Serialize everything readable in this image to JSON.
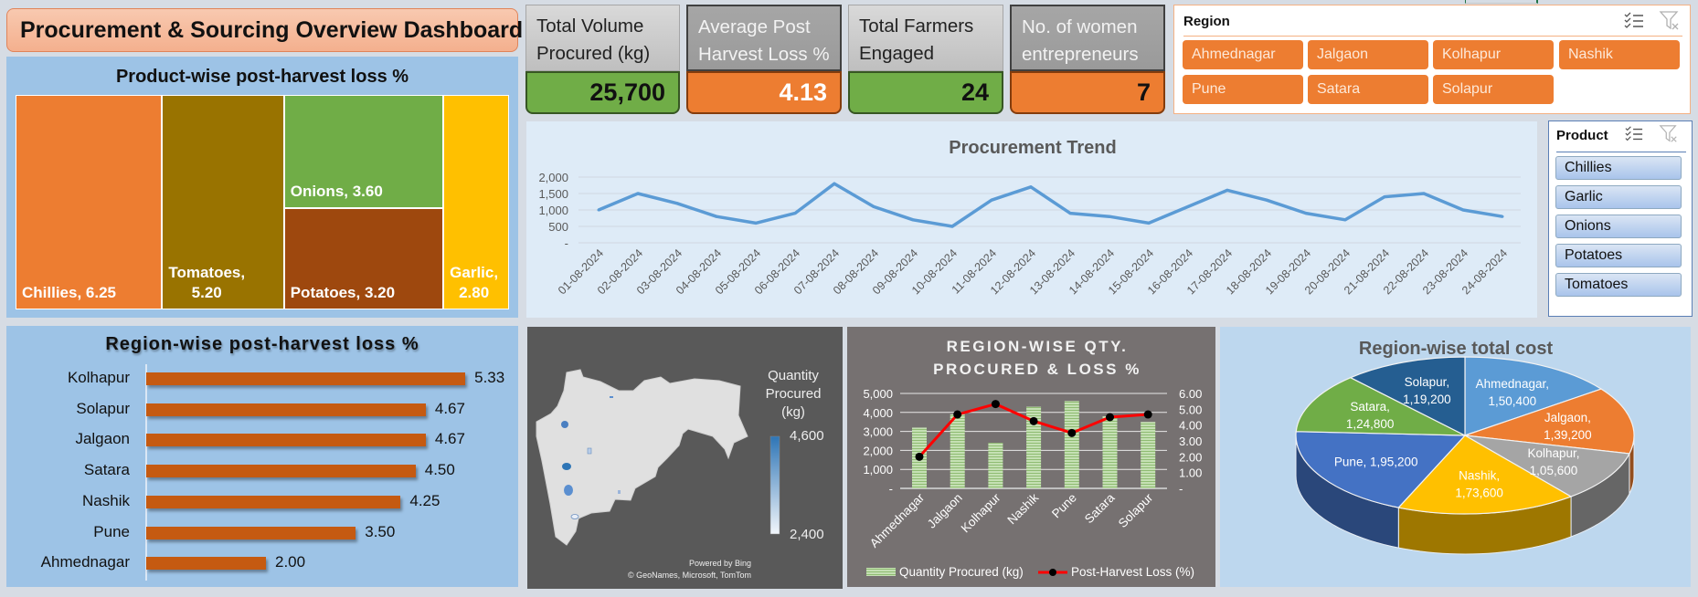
{
  "header": {
    "title": "Procurement & Sourcing Overview Dashboard"
  },
  "kpis": [
    {
      "label_line1": "Total Volume",
      "label_line2": "Procured (kg)",
      "value": "25,700",
      "color": "#70ad47"
    },
    {
      "label_line1": "Average Post",
      "label_line2": "Harvest Loss %",
      "value": "4.13",
      "color": "#ed7d31"
    },
    {
      "label_line1": "Total Farmers",
      "label_line2": "Engaged",
      "value": "24",
      "color": "#70ad47"
    },
    {
      "label_line1": "No. of women",
      "label_line2": "entrepreneurs",
      "value": "7",
      "color": "#ed7d31"
    }
  ],
  "region_slicer": {
    "title": "Region",
    "items": [
      "Ahmednagar",
      "Jalgaon",
      "Kolhapur",
      "Nashik",
      "Pune",
      "Satara",
      "Solapur"
    ]
  },
  "product_slicer": {
    "title": "Product",
    "items": [
      "Chillies",
      "Garlic",
      "Onions",
      "Potatoes",
      "Tomatoes"
    ]
  },
  "icons": {
    "multi_select": "multi-select-icon",
    "clear_filter": "clear-filter-icon"
  },
  "map": {
    "legend_title_lines": [
      "Quantity",
      "Procured",
      "(kg)"
    ],
    "legend_max": "4,600",
    "legend_min": "2,400",
    "credit_line1": "Powered by Bing",
    "credit_line2": "© GeoNames, Microsoft, TomTom"
  },
  "chart_data": [
    {
      "type": "treemap",
      "title": "Product-wise post-harvest loss %",
      "categories": [
        "Chillies",
        "Tomatoes",
        "Onions",
        "Potatoes",
        "Garlic"
      ],
      "values": [
        6.25,
        5.2,
        3.6,
        3.2,
        2.8
      ],
      "labels": [
        [
          "Chillies,  6.25"
        ],
        [
          "Tomatoes,",
          "5.20"
        ],
        [
          "Onions,  3.60"
        ],
        [
          "Potatoes,  3.20"
        ],
        [
          "Garlic,",
          "2.80"
        ]
      ],
      "colors": [
        "#ed7d31",
        "#997300",
        "#70ad47",
        "#9e480e",
        "#ffc000"
      ]
    },
    {
      "type": "line",
      "title": "Procurement Trend",
      "x": [
        "01-08-2024",
        "02-08-2024",
        "03-08-2024",
        "04-08-2024",
        "05-08-2024",
        "06-08-2024",
        "07-08-2024",
        "08-08-2024",
        "09-08-2024",
        "10-08-2024",
        "11-08-2024",
        "12-08-2024",
        "13-08-2024",
        "14-08-2024",
        "15-08-2024",
        "16-08-2024",
        "17-08-2024",
        "18-08-2024",
        "19-08-2024",
        "20-08-2024",
        "21-08-2024",
        "22-08-2024",
        "23-08-2024",
        "24-08-2024"
      ],
      "values": [
        1000,
        1500,
        1200,
        800,
        600,
        900,
        1800,
        1100,
        700,
        500,
        1300,
        1700,
        900,
        800,
        600,
        1100,
        1600,
        1300,
        900,
        700,
        1400,
        1500,
        1000,
        800
      ],
      "ylim": [
        0,
        2000
      ],
      "yticks": [
        "-",
        "500",
        "1,000",
        "1,500",
        "2,000"
      ],
      "grid": true,
      "color": "#5b9bd5"
    },
    {
      "type": "bar",
      "orientation": "horizontal",
      "title": "Region-wise post-harvest loss %",
      "categories": [
        "Kolhapur",
        "Solapur",
        "Jalgaon",
        "Satara",
        "Nashik",
        "Pune",
        "Ahmednagar"
      ],
      "values": [
        5.33,
        4.67,
        4.67,
        4.5,
        4.25,
        3.5,
        2.0
      ],
      "value_labels": [
        "5.33",
        "4.67",
        "4.67",
        "4.50",
        "4.25",
        "3.50",
        "2.00"
      ],
      "color": "#c55a11"
    },
    {
      "type": "bar+line",
      "title_lines": [
        "REGION-WISE QTY.",
        "PROCURED & LOSS %"
      ],
      "categories": [
        "Ahmednagar",
        "Jalgaon",
        "Kolhapur",
        "Nashik",
        "Pune",
        "Satara",
        "Solapur"
      ],
      "series": [
        {
          "name": "Quantity Procured (kg)",
          "axis": "left",
          "type": "bar",
          "values": [
            3200,
            3900,
            2400,
            4300,
            4600,
            3800,
            3500
          ],
          "color": "#a9d18e"
        },
        {
          "name": "Post-Harvest Loss (%)",
          "axis": "right",
          "type": "line",
          "values": [
            2.0,
            4.67,
            5.33,
            4.25,
            3.5,
            4.5,
            4.67
          ],
          "color": "#ff0000"
        }
      ],
      "ylim_left": [
        0,
        5000
      ],
      "yticks_left": [
        "-",
        "1,000",
        "2,000",
        "3,000",
        "4,000",
        "5,000"
      ],
      "ylim_right": [
        0,
        6
      ],
      "yticks_right": [
        "-",
        "1.00",
        "2.00",
        "3.00",
        "4.00",
        "5.00",
        "6.00"
      ],
      "legend": "bottom"
    },
    {
      "type": "pie",
      "title": "Region-wise total cost",
      "categories": [
        "Ahmednagar",
        "Jalgaon",
        "Kolhapur",
        "Nashik",
        "Pune",
        "Satara",
        "Solapur"
      ],
      "values": [
        150400,
        139200,
        105600,
        173600,
        195200,
        124800,
        119200
      ],
      "labels": [
        [
          "Ahmednagar,",
          "1,50,400"
        ],
        [
          "Jalgaon,",
          "1,39,200"
        ],
        [
          "Kolhapur,",
          "1,05,600"
        ],
        [
          "Nashik,",
          "1,73,600"
        ],
        [
          "Pune, 1,95,200"
        ],
        [
          "Satara,",
          "1,24,800"
        ],
        [
          "Solapur,",
          "1,19,200"
        ]
      ],
      "colors": [
        "#5b9bd5",
        "#ed7d31",
        "#a5a5a5",
        "#ffc000",
        "#4472c4",
        "#70ad47",
        "#255e91"
      ],
      "style": "3d"
    }
  ]
}
